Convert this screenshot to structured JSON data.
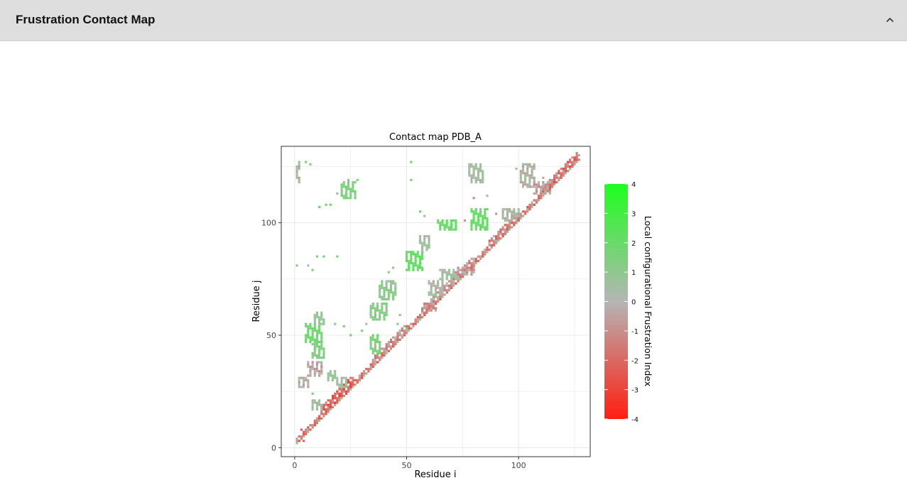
{
  "panel": {
    "title": "Frustration Contact Map"
  },
  "chart_data": {
    "type": "heatmap",
    "title": "Contact map PDB_A",
    "xlabel": "Residue i",
    "ylabel": "Residue j",
    "xlim": [
      -6,
      132
    ],
    "ylim": [
      -4,
      134
    ],
    "xticks": [
      0,
      50,
      100
    ],
    "yticks": [
      0,
      50,
      100
    ],
    "grid": true,
    "colorbar": {
      "title": "Local  configurational  Frustration Index",
      "range": [
        -4,
        4
      ],
      "ticks": [
        4,
        3,
        2,
        1,
        0,
        -1,
        -2,
        -3,
        -4
      ],
      "colors": {
        "low": "#ff1e10",
        "mid": "#b5b5b5",
        "high": "#1eff1e"
      },
      "placement": "right"
    },
    "diagonal": {
      "start": 1,
      "end": 127
    },
    "segments": [
      {
        "i0": 1,
        "i1": 127,
        "d0": 1,
        "d1": 3,
        "v": -1.5
      },
      {
        "i0": 12,
        "i1": 26,
        "d0": 2,
        "d1": 6,
        "v": -2.2
      },
      {
        "i0": 35,
        "i1": 50,
        "d0": 2,
        "d1": 5,
        "v": -1.0
      },
      {
        "i0": 57,
        "i1": 80,
        "d0": 2,
        "d1": 5,
        "v": -0.8
      },
      {
        "i0": 87,
        "i1": 100,
        "d0": 2,
        "d1": 5,
        "v": -1.3
      },
      {
        "i0": 112,
        "i1": 126,
        "d0": 2,
        "d1": 5,
        "v": -1.8
      }
    ],
    "blocks": [
      {
        "i0": 2,
        "i1": 6,
        "j0": 27,
        "j1": 31,
        "v": 0
      },
      {
        "i0": 6,
        "i1": 12,
        "j0": 32,
        "j1": 38,
        "v": -0.4
      },
      {
        "i0": 8,
        "i1": 13,
        "j0": 40,
        "j1": 46,
        "v": 1.2
      },
      {
        "i0": 5,
        "i1": 12,
        "j0": 47,
        "j1": 55,
        "v": 2.0
      },
      {
        "i0": 9,
        "i1": 13,
        "j0": 55,
        "j1": 60,
        "v": 0.8
      },
      {
        "i0": 8,
        "i1": 12,
        "j0": 17,
        "j1": 21,
        "v": 0.4
      },
      {
        "i0": 15,
        "i1": 18,
        "j0": 30,
        "j1": 34,
        "v": 1.0
      },
      {
        "i0": 19,
        "i1": 23,
        "j0": 27,
        "j1": 31,
        "v": 0.3
      },
      {
        "i0": 1,
        "i1": 2,
        "j0": 118,
        "j1": 127,
        "v": 0.2
      },
      {
        "i0": 21,
        "i1": 27,
        "j0": 111,
        "j1": 118,
        "v": 1.4
      },
      {
        "i0": 34,
        "i1": 41,
        "j0": 57,
        "j1": 64,
        "v": 1.2
      },
      {
        "i0": 38,
        "i1": 45,
        "j0": 66,
        "j1": 74,
        "v": 1.0
      },
      {
        "i0": 34,
        "i1": 38,
        "j0": 42,
        "j1": 50,
        "v": 1.5
      },
      {
        "i0": 50,
        "i1": 57,
        "j0": 79,
        "j1": 87,
        "v": 2.2
      },
      {
        "i0": 56,
        "i1": 60,
        "j0": 88,
        "j1": 94,
        "v": 0.4
      },
      {
        "i0": 60,
        "i1": 66,
        "j0": 68,
        "j1": 74,
        "v": 0.3
      },
      {
        "i0": 64,
        "i1": 72,
        "j0": 97,
        "j1": 101,
        "v": 2.0
      },
      {
        "i0": 65,
        "i1": 73,
        "j0": 75,
        "j1": 79,
        "v": 0.6
      },
      {
        "i0": 72,
        "i1": 80,
        "j0": 77,
        "j1": 80,
        "v": -0.8
      },
      {
        "i0": 58,
        "i1": 63,
        "j0": 61,
        "j1": 64,
        "v": -1.1
      },
      {
        "i0": 79,
        "i1": 86,
        "j0": 97,
        "j1": 106,
        "v": 2.2
      },
      {
        "i0": 78,
        "i1": 84,
        "j0": 118,
        "j1": 126,
        "v": 0.5
      },
      {
        "i0": 93,
        "i1": 100,
        "j0": 101,
        "j1": 106,
        "v": 0.2
      },
      {
        "i0": 101,
        "i1": 107,
        "j0": 116,
        "j1": 126,
        "v": 0.1
      },
      {
        "i0": 107,
        "i1": 114,
        "j0": 113,
        "j1": 118,
        "v": -0.6
      }
    ],
    "points": [
      {
        "i": 5,
        "j": 127,
        "v": 2.0
      },
      {
        "i": 7,
        "j": 126,
        "v": 1.5
      },
      {
        "i": 11,
        "j": 107,
        "v": 2.2
      },
      {
        "i": 14,
        "j": 108,
        "v": 1.8
      },
      {
        "i": 16,
        "j": 108,
        "v": 1.8
      },
      {
        "i": 19,
        "j": 113,
        "v": 0
      },
      {
        "i": 24,
        "j": 119,
        "v": 1.6
      },
      {
        "i": 28,
        "j": 119,
        "v": 1.6
      },
      {
        "i": 1,
        "j": 81,
        "v": 1.4
      },
      {
        "i": 6,
        "j": 81,
        "v": 0
      },
      {
        "i": 8,
        "j": 79,
        "v": 1.2
      },
      {
        "i": 10,
        "j": 85,
        "v": 1.5
      },
      {
        "i": 13,
        "j": 85,
        "v": 1.5
      },
      {
        "i": 19,
        "j": 85,
        "v": 1.5
      },
      {
        "i": 22,
        "j": 54,
        "v": 1.5
      },
      {
        "i": 25,
        "j": 50,
        "v": 2.0
      },
      {
        "i": 18,
        "j": 55,
        "v": 0.6
      },
      {
        "i": 30,
        "j": 52,
        "v": 1.4
      },
      {
        "i": 32,
        "j": 55,
        "v": 0
      },
      {
        "i": 46,
        "j": 55,
        "v": 1.0
      },
      {
        "i": 50,
        "j": 53,
        "v": 1.6
      },
      {
        "i": 47,
        "j": 59,
        "v": 1.3
      },
      {
        "i": 52,
        "j": 127,
        "v": 2.2
      },
      {
        "i": 52,
        "j": 119,
        "v": 1.8
      },
      {
        "i": 58,
        "j": 103,
        "v": 0
      },
      {
        "i": 56,
        "j": 105,
        "v": 1.8
      },
      {
        "i": 62,
        "j": 66,
        "v": 1.0
      },
      {
        "i": 42,
        "j": 78,
        "v": 0.4
      },
      {
        "i": 44,
        "j": 80,
        "v": 0.8
      },
      {
        "i": 80,
        "j": 111,
        "v": -1.2
      },
      {
        "i": 76,
        "j": 101,
        "v": -0.8
      },
      {
        "i": 86,
        "j": 112,
        "v": 0.6
      },
      {
        "i": 90,
        "j": 104,
        "v": -0.9
      },
      {
        "i": 93,
        "j": 104,
        "v": 0.4
      },
      {
        "i": 99,
        "j": 124,
        "v": 0.2
      },
      {
        "i": 111,
        "j": 120,
        "v": -0.3
      },
      {
        "i": 3,
        "j": 8,
        "v": -2.5
      },
      {
        "i": 4,
        "j": 3,
        "v": -2.0
      },
      {
        "i": 8,
        "j": 24,
        "v": 1.5
      },
      {
        "i": 13,
        "j": 40,
        "v": 1.2
      }
    ]
  }
}
